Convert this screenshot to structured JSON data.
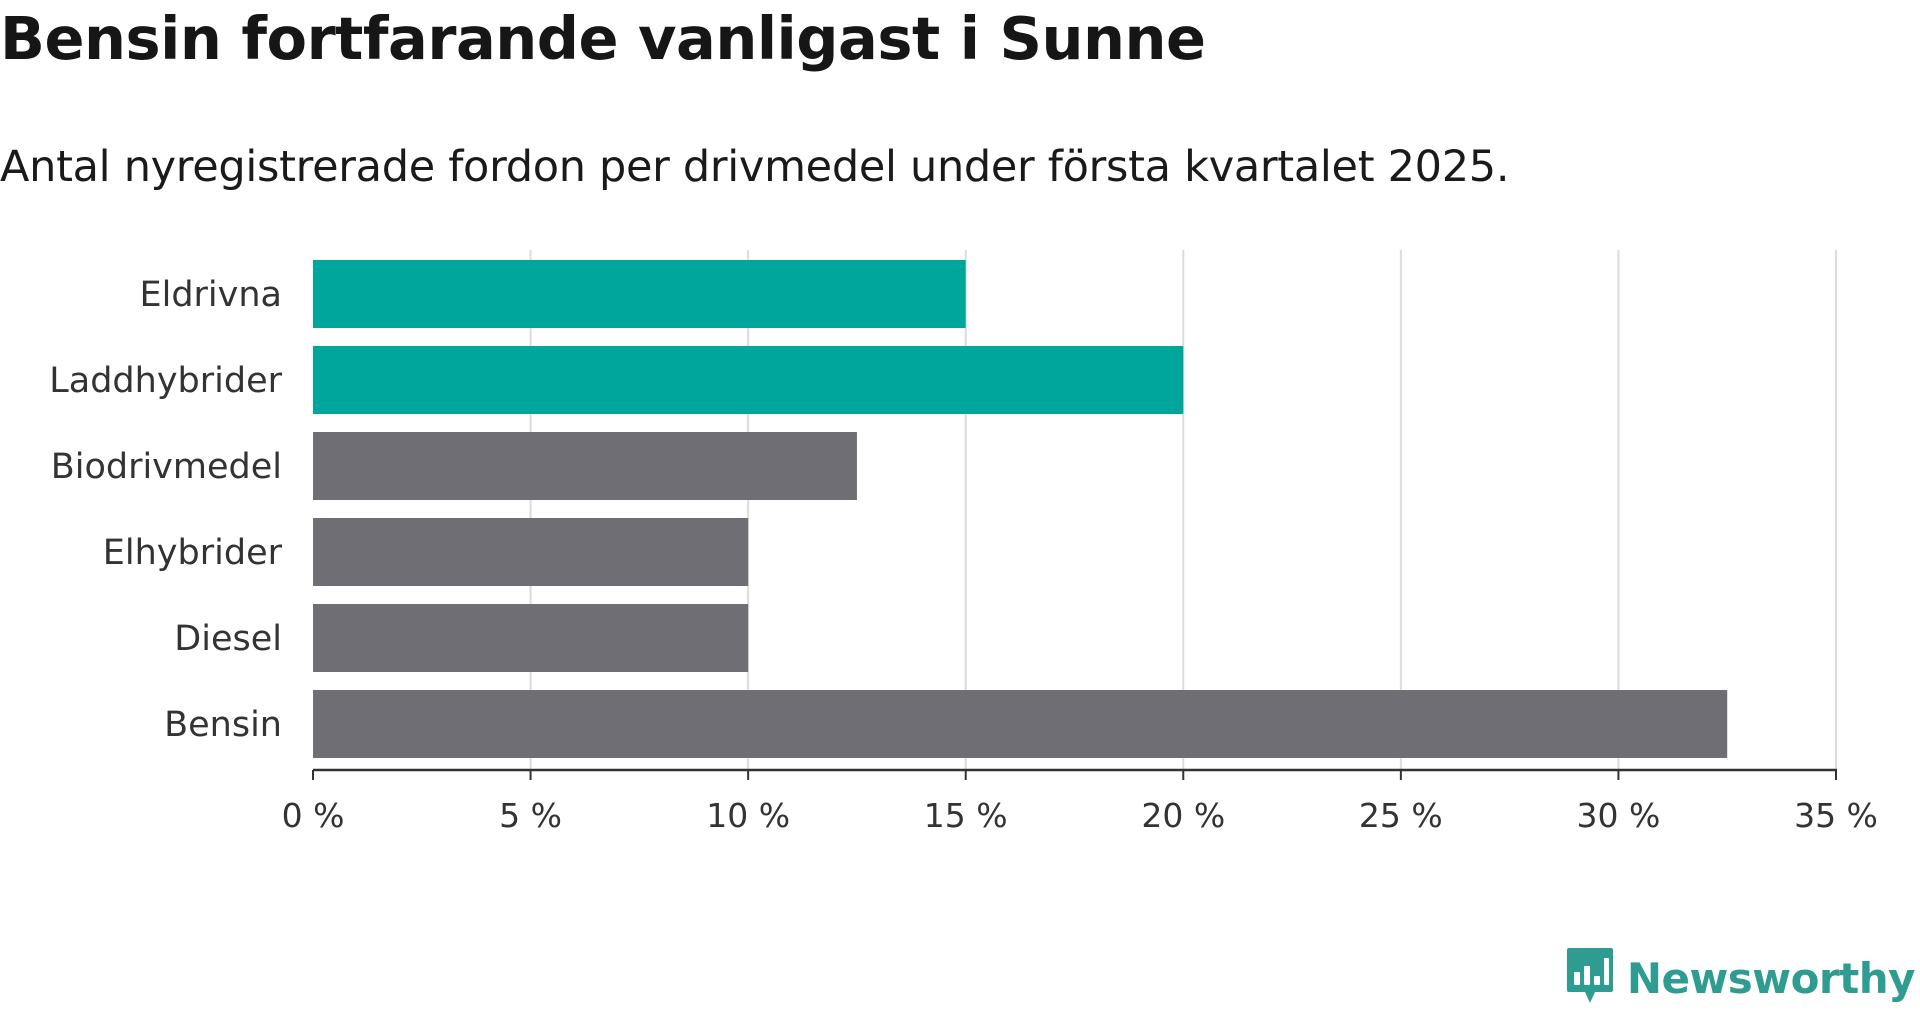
{
  "chart_data": {
    "type": "bar",
    "orientation": "horizontal",
    "title": "Bensin fortfarande vanligast i Sunne",
    "subtitle": "Antal nyregistrerade fordon per drivmedel under första kvartalet 2025.",
    "categories": [
      "Eldrivna",
      "Laddhybrider",
      "Biodrivmedel",
      "Elhybrider",
      "Diesel",
      "Bensin"
    ],
    "values": [
      15,
      20,
      12.5,
      10,
      10,
      32.5
    ],
    "colors": [
      "#00a69c",
      "#00a69c",
      "#6f6e75",
      "#6f6e75",
      "#6f6e75",
      "#6f6e75"
    ],
    "xlim": [
      0,
      35
    ],
    "xticks": [
      0,
      5,
      10,
      15,
      20,
      25,
      30,
      35
    ],
    "xtick_labels": [
      "0 %",
      "5 %",
      "10 %",
      "15 %",
      "20 %",
      "25 %",
      "30 %",
      "35 %"
    ],
    "xlabel": "",
    "ylabel": "",
    "grid": "vertical",
    "legend": "none"
  },
  "brand": {
    "name": "Newsworthy",
    "color": "#2f9c92",
    "icon": "newsworthy-logo-icon"
  }
}
